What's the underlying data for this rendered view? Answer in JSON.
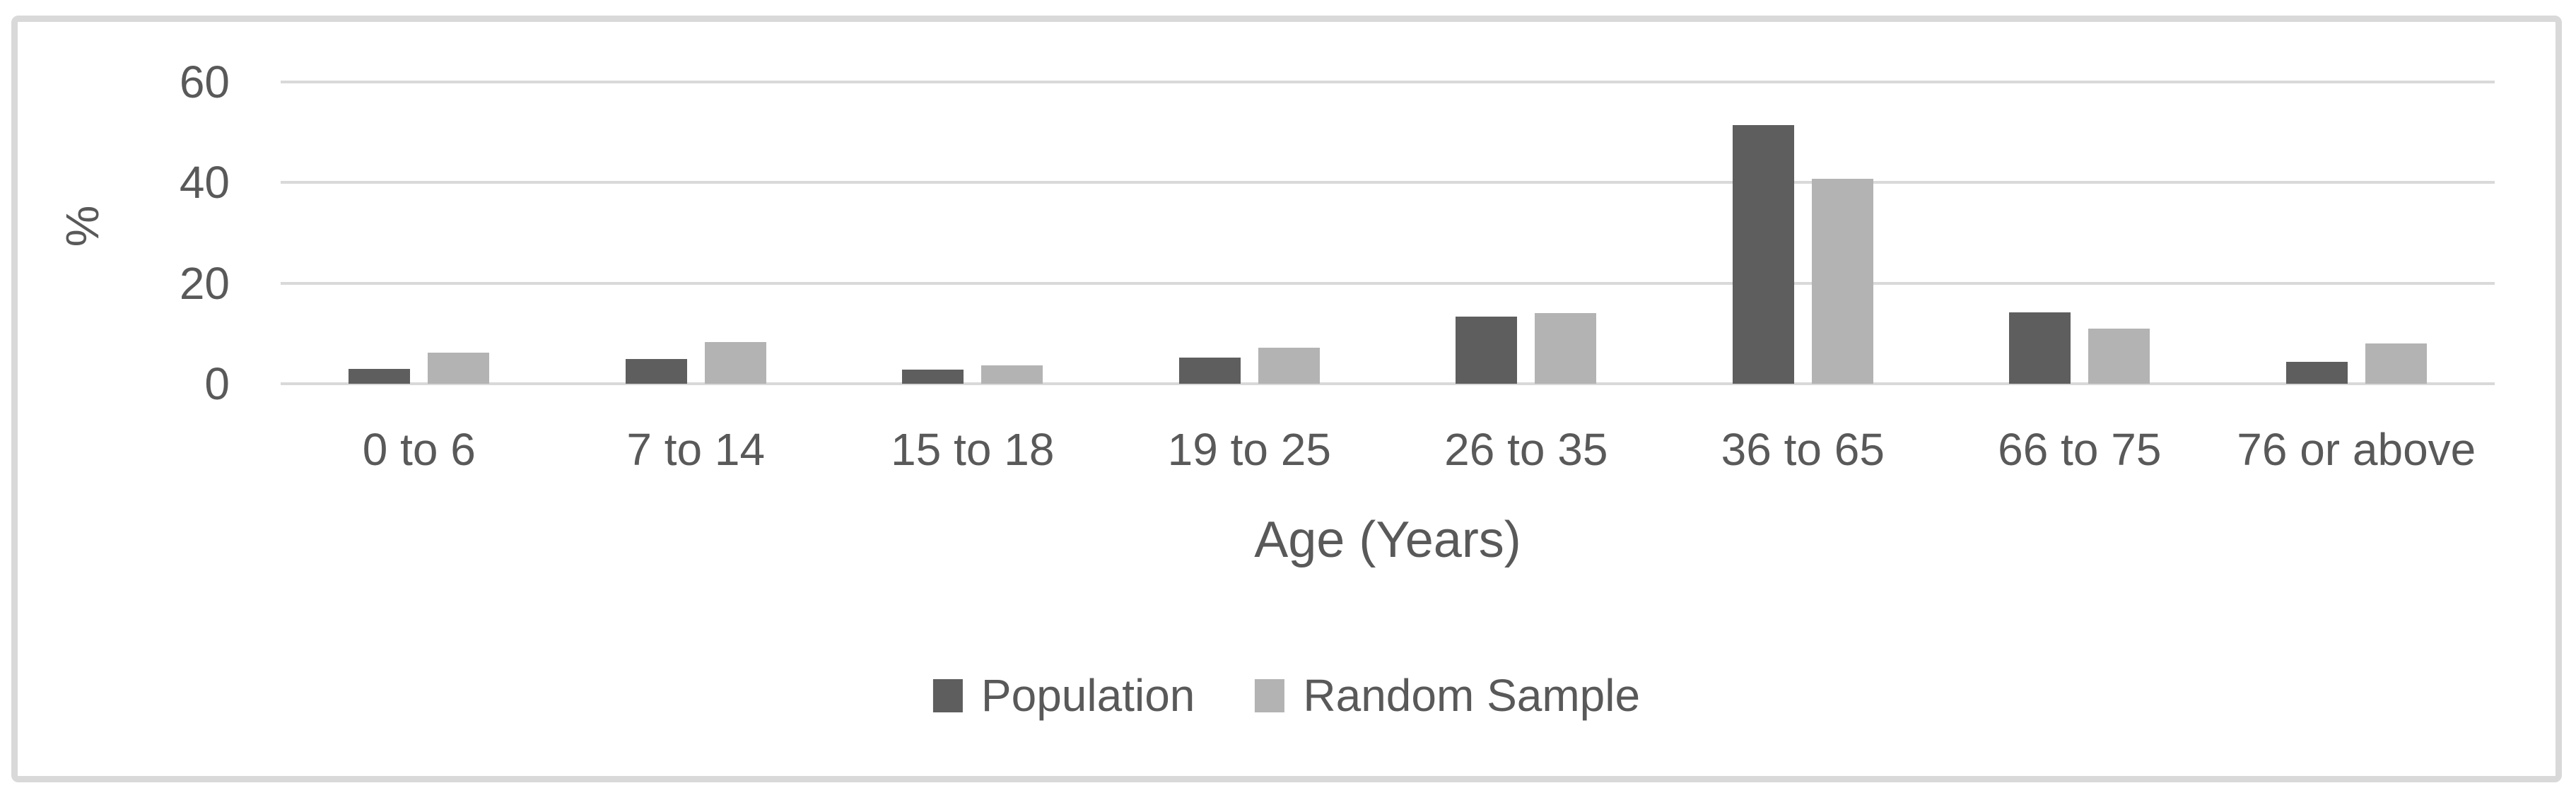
{
  "chart_data": {
    "type": "bar",
    "title": "",
    "categories": [
      "0 to 6",
      "7 to 14",
      "15 to 18",
      "19 to 25",
      "26 to 35",
      "36 to 65",
      "66 to 75",
      "76 or above"
    ],
    "series": [
      {
        "name": "Population",
        "color": "#5e5e5e",
        "values": [
          3.0,
          4.9,
          2.8,
          5.2,
          13.3,
          51.5,
          14.2,
          4.3
        ]
      },
      {
        "name": "Random Sample",
        "color": "#b3b3b3",
        "values": [
          6.2,
          8.3,
          3.6,
          7.2,
          14.0,
          40.8,
          10.9,
          8.0
        ]
      }
    ],
    "xlabel": "Age (Years)",
    "ylabel": "%",
    "yticks": [
      0,
      20,
      40,
      60
    ],
    "ylim": [
      0,
      60
    ],
    "grid": true,
    "legend_position": "bottom"
  },
  "colors": {
    "gridline": "#d9d9d9",
    "frame_border": "#d9d9d9",
    "text": "#595959",
    "background": "#ffffff"
  }
}
